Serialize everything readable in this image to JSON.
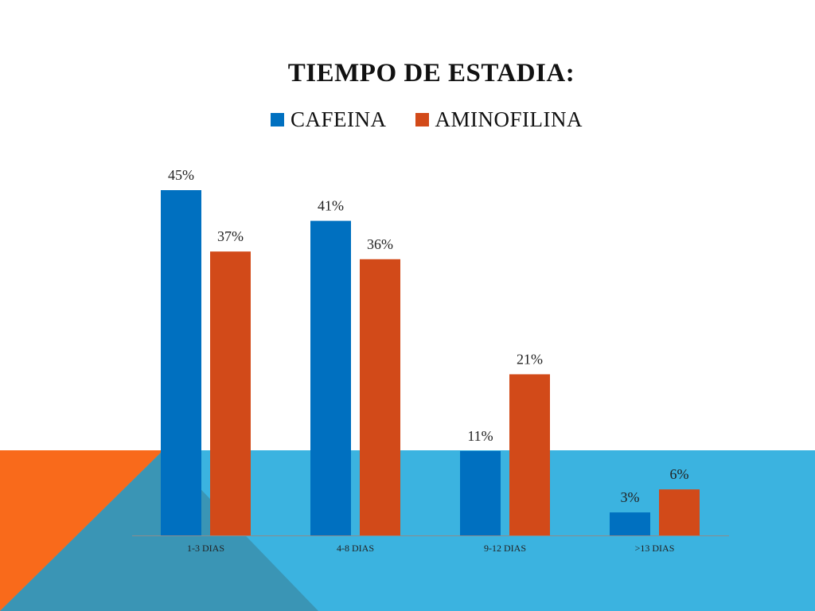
{
  "slide": {
    "colors": {
      "orange": "#f96a1b",
      "blue": "#3bb3e0",
      "teal": "#3a95b5"
    }
  },
  "chart_data": {
    "type": "bar",
    "title": "TIEMPO DE ESTADIA:",
    "categories": [
      "1-3 DIAS",
      "4-8 DIAS",
      "9-12 DIAS",
      ">13 DIAS"
    ],
    "series": [
      {
        "name": "CAFEINA",
        "color": "#0070c0",
        "values": [
          45,
          41,
          11,
          3
        ],
        "labels": [
          "45%",
          "41%",
          "11%",
          "3%"
        ]
      },
      {
        "name": "AMINOFILINA",
        "color": "#d24a19",
        "values": [
          37,
          36,
          21,
          6
        ],
        "labels": [
          "37%",
          "36%",
          "21%",
          "6%"
        ]
      }
    ],
    "ylim": [
      0,
      45
    ],
    "xlabel": "",
    "ylabel": "",
    "grid": false,
    "legend": "top"
  }
}
